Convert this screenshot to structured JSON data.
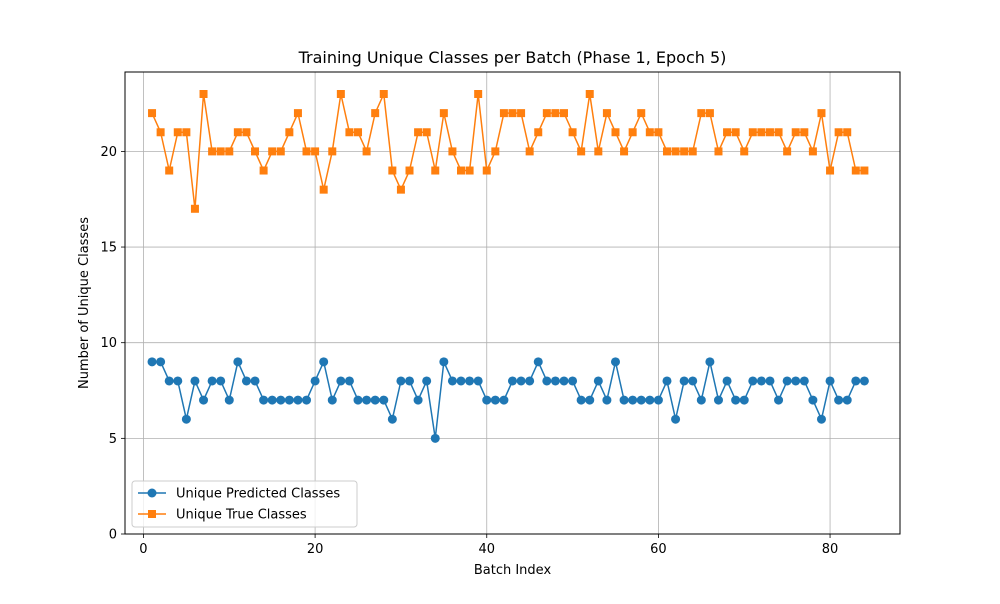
{
  "chart_data": {
    "type": "line",
    "title": "Training Unique Classes per Batch (Phase 1, Epoch 5)",
    "xlabel": "Batch Index",
    "ylabel": "Number of Unique Classes",
    "xlim": [
      -2.15,
      88.15
    ],
    "ylim": [
      0,
      24.15
    ],
    "xticks": [
      0,
      20,
      40,
      60,
      80
    ],
    "yticks": [
      0,
      5,
      10,
      15,
      20
    ],
    "grid": true,
    "legend_position": "lower-left",
    "x": [
      1,
      2,
      3,
      4,
      5,
      6,
      7,
      8,
      9,
      10,
      11,
      12,
      13,
      14,
      15,
      16,
      17,
      18,
      19,
      20,
      21,
      22,
      23,
      24,
      25,
      26,
      27,
      28,
      29,
      30,
      31,
      32,
      33,
      34,
      35,
      36,
      37,
      38,
      39,
      40,
      41,
      42,
      43,
      44,
      45,
      46,
      47,
      48,
      49,
      50,
      51,
      52,
      53,
      54,
      55,
      56,
      57,
      58,
      59,
      60,
      61,
      62,
      63,
      64,
      65,
      66,
      67,
      68,
      69,
      70,
      71,
      72,
      73,
      74,
      75,
      76,
      77,
      78,
      79,
      80,
      81,
      82,
      83,
      84
    ],
    "series": [
      {
        "name": "Unique Predicted Classes",
        "color": "#1f77b4",
        "marker": "circle",
        "values": [
          9,
          9,
          8,
          8,
          6,
          8,
          7,
          8,
          8,
          7,
          9,
          8,
          8,
          7,
          7,
          7,
          7,
          7,
          7,
          8,
          9,
          7,
          8,
          8,
          7,
          7,
          7,
          7,
          6,
          8,
          8,
          7,
          8,
          5,
          9,
          8,
          8,
          8,
          8,
          7,
          7,
          7,
          8,
          8,
          8,
          9,
          8,
          8,
          8,
          8,
          7,
          7,
          8,
          7,
          9,
          7,
          7,
          7,
          7,
          7,
          8,
          6,
          8,
          8,
          7,
          9,
          7,
          8,
          7,
          7,
          8,
          8,
          8,
          7,
          8,
          8,
          8,
          7,
          6,
          8,
          7,
          7,
          8,
          8
        ]
      },
      {
        "name": "Unique True Classes",
        "color": "#ff7f0e",
        "marker": "square",
        "values": [
          22,
          21,
          19,
          21,
          21,
          17,
          23,
          20,
          20,
          20,
          21,
          21,
          20,
          19,
          20,
          20,
          21,
          22,
          20,
          20,
          18,
          20,
          23,
          21,
          21,
          20,
          22,
          23,
          19,
          18,
          19,
          21,
          21,
          19,
          22,
          20,
          19,
          19,
          23,
          19,
          20,
          22,
          22,
          22,
          20,
          21,
          22,
          22,
          22,
          21,
          20,
          23,
          20,
          22,
          21,
          20,
          21,
          22,
          21,
          21,
          20,
          20,
          20,
          20,
          22,
          22,
          20,
          21,
          21,
          20,
          21,
          21,
          21,
          21,
          20,
          21,
          21,
          20,
          22,
          19,
          21,
          21,
          19,
          19
        ]
      }
    ]
  }
}
